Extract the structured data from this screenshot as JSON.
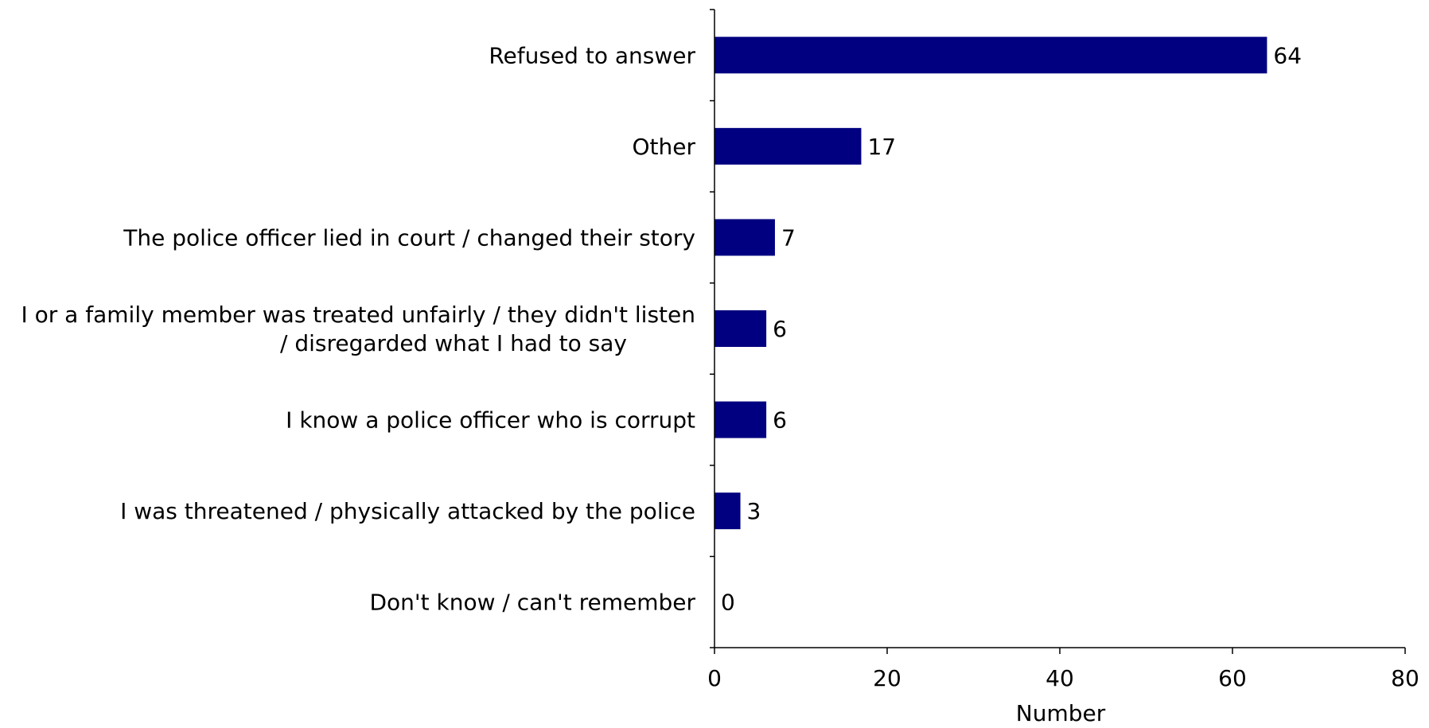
{
  "colors": {
    "bar": "#000080",
    "axis": "#000000",
    "text": "#000000"
  },
  "chart_data": {
    "type": "bar",
    "orientation": "horizontal",
    "title": "",
    "xlabel": "Number",
    "ylabel": "",
    "xlim": [
      0,
      80
    ],
    "ticks": [
      0,
      20,
      40,
      60,
      80
    ],
    "grid": false,
    "legend": "none",
    "categories": [
      [
        "Refused to answer"
      ],
      [
        "Other"
      ],
      [
        "The police officer lied in court / changed their story"
      ],
      [
        "I or a family member was treated unfairly / they didn't listen",
        "/ disregarded what I had to say"
      ],
      [
        "I know a police officer who is corrupt"
      ],
      [
        "I was threatened / physically attacked by the police"
      ],
      [
        "Don't know / can't remember"
      ]
    ],
    "values": [
      64,
      17,
      7,
      6,
      6,
      3,
      0
    ]
  }
}
